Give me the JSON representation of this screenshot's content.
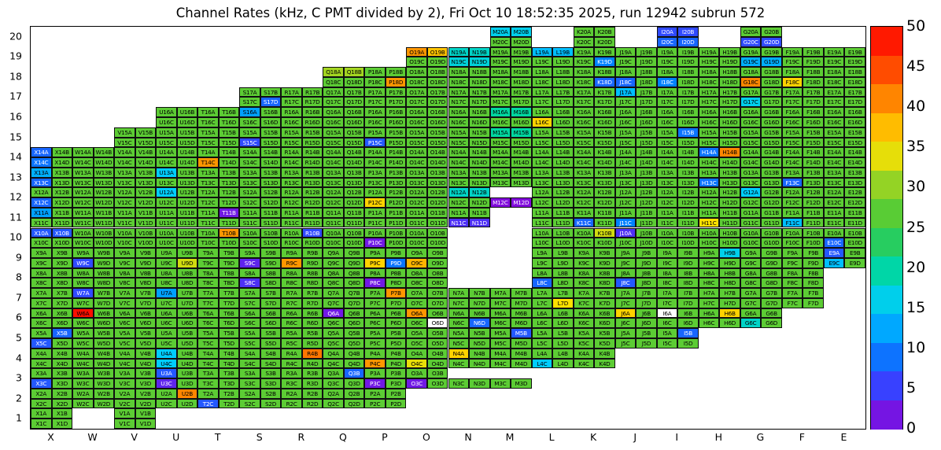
{
  "title": "Channel Rates (kHz, C PMT divided by 2), Fri Oct 10 18:52:35 2025, run 12942 subrun 572",
  "x_axis": {
    "labels": [
      "X",
      "W",
      "V",
      "U",
      "T",
      "S",
      "R",
      "Q",
      "P",
      "O",
      "N",
      "M",
      "L",
      "K",
      "J",
      "I",
      "H",
      "G",
      "F",
      "E"
    ]
  },
  "y_axis": {
    "labels": [
      "1",
      "2",
      "3",
      "4",
      "5",
      "6",
      "7",
      "8",
      "9",
      "10",
      "11",
      "12",
      "13",
      "14",
      "15",
      "16",
      "17",
      "18",
      "19",
      "20"
    ]
  },
  "colorbar": {
    "min": 0,
    "max": 50,
    "bands": 14,
    "ticks": [
      0,
      5,
      10,
      15,
      20,
      25,
      30,
      35,
      40,
      45,
      50
    ]
  },
  "chart_data": {
    "type": "heatmap",
    "unit": "kHz",
    "value_min": 0,
    "value_max": 50,
    "default_value": 27,
    "columns": [
      "X",
      "W",
      "V",
      "U",
      "T",
      "S",
      "R",
      "Q",
      "P",
      "O",
      "N",
      "M",
      "L",
      "K",
      "J",
      "I",
      "H",
      "G",
      "F",
      "E"
    ],
    "channel_suffixes": [
      "A",
      "B",
      "C",
      "D"
    ],
    "color_stops": [
      [
        0,
        148,
        0,
        211
      ],
      [
        5,
        60,
        60,
        255
      ],
      [
        10,
        0,
        130,
        255
      ],
      [
        15,
        0,
        205,
        255
      ],
      [
        20,
        0,
        215,
        160
      ],
      [
        25,
        60,
        200,
        60
      ],
      [
        30,
        140,
        210,
        40
      ],
      [
        35,
        255,
        225,
        0
      ],
      [
        40,
        255,
        150,
        0
      ],
      [
        45,
        255,
        70,
        0
      ],
      [
        50,
        255,
        0,
        0
      ]
    ],
    "row_occupancy": {
      "20": [
        "M",
        "K",
        "I",
        "G"
      ],
      "19": [
        "O",
        "N",
        "M",
        "L",
        "K",
        "J",
        "I",
        "H",
        "G",
        "F",
        "E"
      ],
      "18": [
        "Q",
        "P",
        "O",
        "N",
        "M",
        "L",
        "K",
        "J",
        "I",
        "H",
        "G",
        "F",
        "E"
      ],
      "17": [
        "S",
        "R",
        "Q",
        "P",
        "O",
        "N",
        "M",
        "L",
        "K",
        "J",
        "I",
        "H",
        "G",
        "F",
        "E"
      ],
      "16": [
        "U",
        "T",
        "S",
        "R",
        "Q",
        "P",
        "O",
        "N",
        "M",
        "L",
        "K",
        "J",
        "I",
        "H",
        "G",
        "F",
        "E"
      ],
      "15": [
        "V",
        "U",
        "T",
        "S",
        "R",
        "Q",
        "P",
        "O",
        "N",
        "M",
        "L",
        "K",
        "J",
        "I",
        "H",
        "G",
        "F",
        "E"
      ],
      "14": [
        "X",
        "W",
        "V",
        "U",
        "T",
        "S",
        "R",
        "Q",
        "P",
        "O",
        "N",
        "M",
        "L",
        "K",
        "J",
        "I",
        "H",
        "G",
        "F",
        "E"
      ],
      "13": [
        "X",
        "W",
        "V",
        "U",
        "T",
        "S",
        "R",
        "Q",
        "P",
        "O",
        "N",
        "M",
        "L",
        "K",
        "J",
        "I",
        "H",
        "G",
        "F",
        "E"
      ],
      "12": [
        "X",
        "W",
        "V",
        "U",
        "T",
        "S",
        "R",
        "Q",
        "P",
        "O",
        "N",
        "M",
        "L",
        "K",
        "J",
        "I",
        "H",
        "G",
        "F",
        "E"
      ],
      "11": [
        "X",
        "W",
        "V",
        "U",
        "T",
        "S",
        "R",
        "Q",
        "P",
        "O",
        "N",
        "L",
        "K",
        "J",
        "I",
        "H",
        "G",
        "F",
        "E"
      ],
      "10": [
        "X",
        "W",
        "V",
        "U",
        "T",
        "S",
        "R",
        "Q",
        "P",
        "O",
        "L",
        "K",
        "J",
        "I",
        "H",
        "G",
        "F",
        "E"
      ],
      "9": [
        "X",
        "W",
        "V",
        "U",
        "T",
        "S",
        "R",
        "Q",
        "P",
        "O",
        "L",
        "K",
        "J",
        "I",
        "H",
        "G",
        "F",
        "E"
      ],
      "8": [
        "X",
        "W",
        "V",
        "U",
        "T",
        "S",
        "R",
        "Q",
        "P",
        "O",
        "L",
        "K",
        "J",
        "I",
        "H",
        "G",
        "F"
      ],
      "7": [
        "X",
        "W",
        "V",
        "U",
        "T",
        "S",
        "R",
        "Q",
        "P",
        "O",
        "N",
        "M",
        "L",
        "K",
        "J",
        "I",
        "H",
        "G",
        "F"
      ],
      "6": [
        "X",
        "W",
        "V",
        "U",
        "T",
        "S",
        "R",
        "Q",
        "P",
        "O",
        "N",
        "M",
        "L",
        "K",
        "J",
        "I",
        "H",
        "G"
      ],
      "5": [
        "X",
        "W",
        "V",
        "U",
        "T",
        "S",
        "R",
        "Q",
        "P",
        "O",
        "N",
        "M",
        "L",
        "K",
        "J",
        "I"
      ],
      "4": [
        "X",
        "W",
        "V",
        "U",
        "T",
        "S",
        "R",
        "Q",
        "P",
        "O",
        "N",
        "M",
        "L",
        "K"
      ],
      "3": [
        "X",
        "W",
        "V",
        "U",
        "T",
        "S",
        "R",
        "Q",
        "P",
        "O",
        "N",
        "M"
      ],
      "2": [
        "X",
        "W",
        "V",
        "U",
        "T",
        "S",
        "R",
        "Q",
        "P"
      ],
      "1": [
        "X",
        "V"
      ]
    },
    "partial_channels": {
      "N3": [
        "C",
        "D"
      ],
      "M3": [
        "C",
        "D"
      ],
      "M12": [
        "C",
        "D"
      ]
    },
    "overrides": {
      "M20A": 16,
      "M20B": 16,
      "I20A": 6,
      "I20B": 6,
      "I20C": 8,
      "I20D": 8,
      "G20C": 6,
      "G20D": 6,
      "O19A": 40,
      "O19B": 37,
      "N19A": 18,
      "N19B": 18,
      "N19C": 17,
      "N19D": 17,
      "L19A": 14,
      "L19B": 14,
      "K19D": 10,
      "G19C": 13,
      "G19D": 13,
      "Q18A": 31,
      "Q18B": 31,
      "P18D": 40,
      "K18D": 8,
      "J18C": 8,
      "I18C": 10,
      "G18C": 41,
      "F18C": 36,
      "S17D": 8,
      "J17A": 14,
      "G17C": 16,
      "S16A": 12,
      "M16A": 20,
      "M16B": 20,
      "L16C": 36,
      "S15C": 6,
      "P15C": 7,
      "M15A": 20,
      "M15B": 20,
      "I15B": 9,
      "X14A": 8,
      "X14C": 9,
      "T14C": 40,
      "H14A": 9,
      "H14B": 41,
      "X13A": 13,
      "X13C": 8,
      "U13A": 15,
      "H13C": 9,
      "F13C": 8,
      "X12C": 8,
      "U12A": 15,
      "P12C": 36,
      "N12A": 18,
      "N12B": 18,
      "M12C": 1,
      "M12D": 1,
      "G12A": 15,
      "X11A": 12,
      "T11B": 2,
      "N11C": 4,
      "N11D": 4,
      "K11C": 8,
      "J11C": 10,
      "H11C": 35,
      "F11C": 14,
      "X10A": 7,
      "X10B": 7,
      "T10B": 40,
      "R10B": 6,
      "P10C": 2,
      "K10B": 33,
      "J10A": 4,
      "E10C": 8,
      "W9C": 6,
      "U9D": 33,
      "S9C": 3,
      "R9C": 40,
      "P9C": 36,
      "P9D": 9,
      "O9C": 38,
      "H9B": 16,
      "E9A": 7,
      "E9C": 14,
      "S8C": 4,
      "P8C": 2,
      "L8C": 8,
      "J8C": 7,
      "W7A": 6,
      "U7A": 12,
      "P7B": 40,
      "L7D": 35,
      "W6A": 49,
      "Q6A": 2,
      "O6A": 40,
      "O6D": null,
      "N6D": 8,
      "J6A": 36,
      "I6A": null,
      "H6B": 36,
      "G6C": 18,
      "X5B": 8,
      "X5C": 7,
      "M5B": 7,
      "I5B": 8,
      "U4A": 15,
      "U4C": 15,
      "R4B": 42,
      "P4C": 40,
      "O4C": 34,
      "N4A": 36,
      "L4C": 15,
      "X3C": 7,
      "U3A": 7,
      "U3C": 3,
      "Q3B": 8,
      "P3C": 2,
      "O3C": 2,
      "U2B": 41,
      "T2C": 7
    }
  }
}
